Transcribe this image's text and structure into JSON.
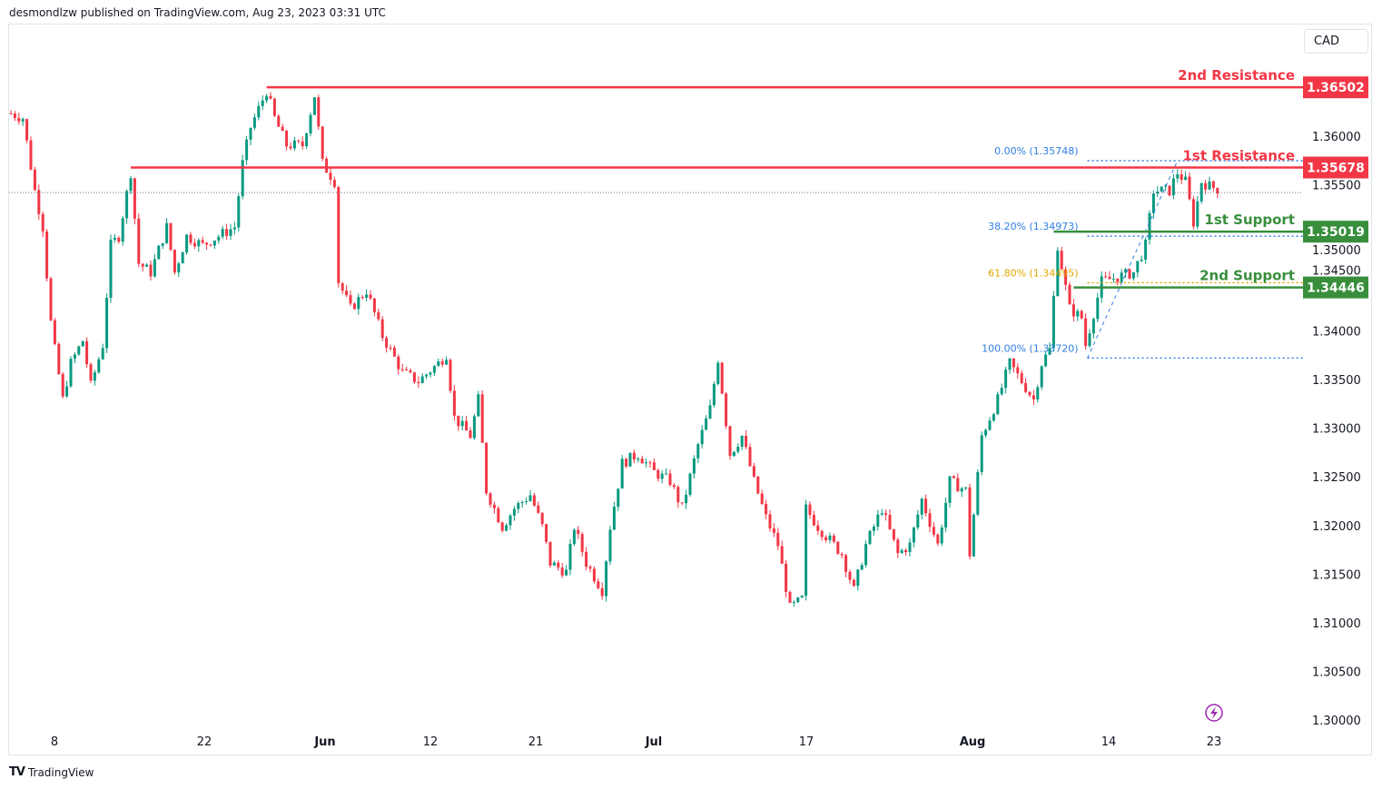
{
  "header": {
    "published": "desmondlzw published on TradingView.com, Aug 23, 2023 03:31 UTC"
  },
  "currency_button": "CAD",
  "footer": {
    "brand": "TradingView",
    "logo_mark": "17"
  },
  "colors": {
    "up": "#089981",
    "down": "#f23645",
    "resistance": "#f23645",
    "support": "#388e3c",
    "fib": "#2f7fe0",
    "fib_618": "#e0a800",
    "alert_icon": "#9c27b0"
  },
  "chart_data": {
    "type": "candlestick",
    "symbol_quote_currency": "CAD",
    "ylim": [
      1.2975,
      1.3701
    ],
    "y_ticks": [
      "1.36000",
      "1.35500",
      "1.35000",
      "1.34500",
      "1.34000",
      "1.33500",
      "1.33000",
      "1.32500",
      "1.32000",
      "1.31500",
      "1.31000",
      "1.30500",
      "1.30000"
    ],
    "x_ticks": [
      "8",
      "22",
      "Jun",
      "12",
      "21",
      "Jul",
      "17",
      "Aug",
      "14",
      "23"
    ],
    "price_path_bar_close": [
      [
        0,
        1.36233
      ],
      [
        3,
        1.36187
      ],
      [
        6,
        1.3544
      ],
      [
        8,
        1.35067
      ],
      [
        10,
        1.34087
      ],
      [
        11,
        1.33807
      ],
      [
        13,
        1.33294
      ],
      [
        15,
        1.33667
      ],
      [
        18,
        1.339
      ],
      [
        20,
        1.33434
      ],
      [
        23,
        1.33854
      ],
      [
        25,
        1.3488
      ],
      [
        27,
        1.34974
      ],
      [
        30,
        1.35627
      ],
      [
        32,
        1.34694
      ],
      [
        35,
        1.34601
      ],
      [
        39,
        1.35067
      ],
      [
        41,
        1.34601
      ],
      [
        44,
        1.34974
      ],
      [
        48,
        1.3488
      ],
      [
        52,
        1.34974
      ],
      [
        56,
        1.35067
      ],
      [
        58,
        1.3572
      ],
      [
        60,
        1.36093
      ],
      [
        64,
        1.36467
      ],
      [
        66,
        1.36187
      ],
      [
        69,
        1.35907
      ],
      [
        73,
        1.35907
      ],
      [
        76,
        1.3642
      ],
      [
        78,
        1.3572
      ],
      [
        81,
        1.35534
      ],
      [
        82,
        1.34507
      ],
      [
        85,
        1.34227
      ],
      [
        89,
        1.34414
      ],
      [
        93,
        1.33947
      ],
      [
        98,
        1.33574
      ],
      [
        102,
        1.33481
      ],
      [
        107,
        1.33667
      ],
      [
        109,
        1.33761
      ],
      [
        111,
        1.33108
      ],
      [
        115,
        1.32921
      ],
      [
        117,
        1.33294
      ],
      [
        119,
        1.32361
      ],
      [
        123,
        1.31988
      ],
      [
        126,
        1.32175
      ],
      [
        130,
        1.32315
      ],
      [
        133,
        1.31988
      ],
      [
        135,
        1.31615
      ],
      [
        139,
        1.31522
      ],
      [
        141,
        1.31988
      ],
      [
        144,
        1.31615
      ],
      [
        148,
        1.31335
      ],
      [
        150,
        1.31988
      ],
      [
        153,
        1.32641
      ],
      [
        157,
        1.32734
      ],
      [
        161,
        1.32548
      ],
      [
        165,
        1.32455
      ],
      [
        168,
        1.32175
      ],
      [
        172,
        1.32828
      ],
      [
        175,
        1.33201
      ],
      [
        177,
        1.33714
      ],
      [
        180,
        1.32734
      ],
      [
        183,
        1.32921
      ],
      [
        186,
        1.32455
      ],
      [
        189,
        1.32081
      ],
      [
        192,
        1.31801
      ],
      [
        195,
        1.31148
      ],
      [
        198,
        1.31242
      ],
      [
        199,
        1.32175
      ],
      [
        202,
        1.31988
      ],
      [
        206,
        1.31801
      ],
      [
        208,
        1.31708
      ],
      [
        211,
        1.31335
      ],
      [
        214,
        1.31801
      ],
      [
        218,
        1.32175
      ],
      [
        222,
        1.31708
      ],
      [
        225,
        1.31801
      ],
      [
        228,
        1.32268
      ],
      [
        232,
        1.31801
      ],
      [
        235,
        1.32455
      ],
      [
        239,
        1.32361
      ],
      [
        240,
        1.31708
      ],
      [
        243,
        1.32921
      ],
      [
        247,
        1.33294
      ],
      [
        250,
        1.33667
      ],
      [
        253,
        1.33481
      ],
      [
        256,
        1.33294
      ],
      [
        258,
        1.33667
      ],
      [
        260,
        1.33807
      ],
      [
        262,
        1.3488
      ],
      [
        265,
        1.34227
      ],
      [
        268,
        1.34134
      ],
      [
        269,
        1.33854
      ],
      [
        273,
        1.34507
      ],
      [
        277,
        1.34554
      ],
      [
        281,
        1.34601
      ],
      [
        284,
        1.3488
      ],
      [
        286,
        1.3544
      ],
      [
        290,
        1.3544
      ],
      [
        292,
        1.35627
      ],
      [
        294,
        1.35534
      ],
      [
        296,
        1.35114
      ],
      [
        298,
        1.35534
      ],
      [
        300,
        1.35487
      ],
      [
        302,
        1.35459
      ]
    ],
    "last_price": 1.3542,
    "levels": [
      {
        "name": "2nd Resistance",
        "price": 1.36502,
        "label": "1.36502",
        "kind": "resistance",
        "start_bar": 64
      },
      {
        "name": "1st Resistance",
        "price": 1.35678,
        "label": "1.35678",
        "kind": "resistance",
        "start_bar": 30
      },
      {
        "name": "1st Support",
        "price": 1.35019,
        "label": "1.35019",
        "kind": "support",
        "start_bar": 261
      },
      {
        "name": "2nd Support",
        "price": 1.34446,
        "label": "1.34446",
        "kind": "support",
        "start_bar": 266
      }
    ],
    "fibonacci": [
      {
        "label": "0.00% (1.35748)",
        "price": 1.35748
      },
      {
        "label": "38.20% (1.34973)",
        "price": 1.34973
      },
      {
        "label": "61.80% (1.34495)",
        "price": 1.34495
      },
      {
        "label": "100.00% (1.33720)",
        "price": 1.3372
      }
    ],
    "fib_start_bar": 269,
    "fib_end_bar": 292
  }
}
